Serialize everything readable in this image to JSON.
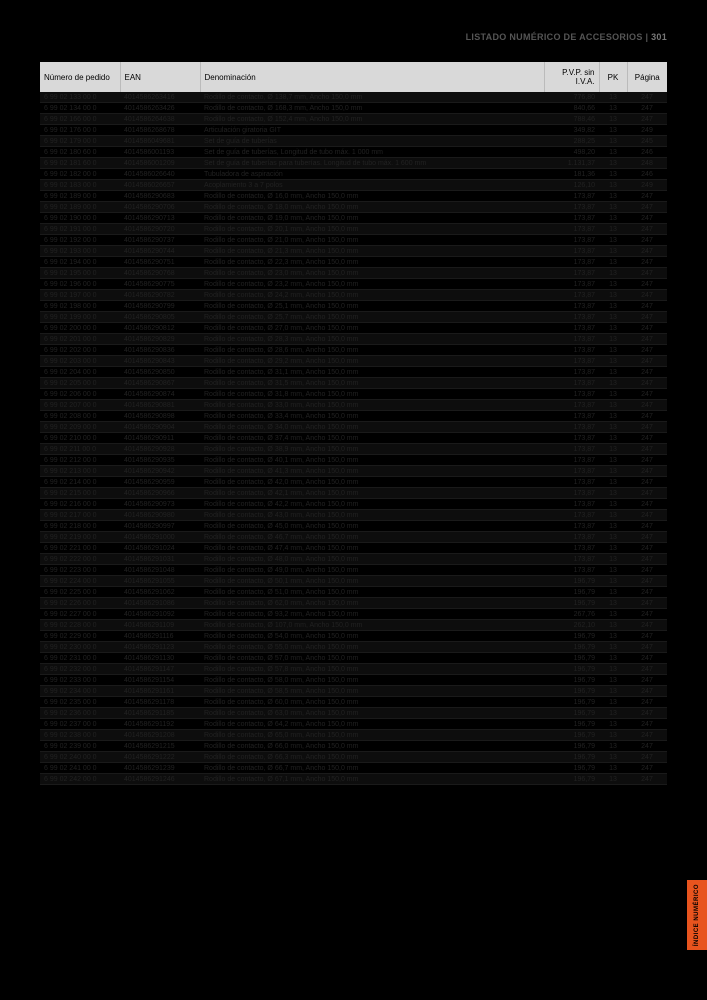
{
  "header": {
    "title": "LISTADO NUMÉRICO DE ACCESORIOS",
    "page": "301"
  },
  "sideTab": "ÍNDICE NUMÉRICO",
  "columns": {
    "num": "Número de pedido",
    "ean": "EAN",
    "den": "Denominación",
    "pvp": "P.V.P. sin I.V.A.",
    "pk": "PK",
    "pg": "Página"
  },
  "rows": [
    [
      "6 99 02 133 00 0",
      "4014586263416",
      "Rodillo de contacto, Ø 138,7 mm, Ancho 150,0 mm",
      "776,80",
      "13",
      "247"
    ],
    [
      "6 99 02 134 00 0",
      "4014586263426",
      "Rodillo de contacto, Ø 168,3 mm, Ancho 150,0 mm",
      "840,66",
      "13",
      "247"
    ],
    [
      "6 99 02 166 00 0",
      "4014586264638",
      "Rodillo de contacto, Ø 152,4 mm, Ancho 150,0 mm",
      "788,46",
      "13",
      "247"
    ],
    [
      "6 99 02 176 00 0",
      "4014586268678",
      "Articulación giratoria GIT",
      "349,82",
      "13",
      "249"
    ],
    [
      "6 99 02 179 00 0",
      "4014586049681",
      "Set de guía de tuberías",
      "288,25",
      "13",
      "245"
    ],
    [
      "6 99 02 180 60 0",
      "4014586001193",
      "Set de guía de tuberías, Longitud de tubo máx. 1 000 mm",
      "498,20",
      "13",
      "246"
    ],
    [
      "6 99 02 181 60 0",
      "4014586001209",
      "Set de guía de tuberías para tuberías. Longitud de tubo máx. 1 600 mm",
      "1.131,37",
      "13",
      "248"
    ],
    [
      "6 99 02 182 00 0",
      "4014586026640",
      "Tubuladora de aspiración",
      "181,36",
      "13",
      "246"
    ],
    [
      "6 99 02 183 00 0",
      "4014586026657",
      "Acoplamiento 3 a 7 polos",
      "126,10",
      "13",
      "249"
    ],
    [
      "6 99 02 189 00 0",
      "4014586290683",
      "Rodillo de contacto, Ø 16,0 mm, Ancho 150,0 mm",
      "173,87",
      "13",
      "247"
    ],
    [
      "6 99 02 189 00 0",
      "4014586290706",
      "Rodillo de contacto, Ø 18,0 mm, Ancho 150,0 mm",
      "173,87",
      "13",
      "247"
    ],
    [
      "6 99 02 190 00 0",
      "4014586290713",
      "Rodillo de contacto, Ø 19,0 mm, Ancho 150,0 mm",
      "173,87",
      "13",
      "247"
    ],
    [
      "6 99 02 191 00 0",
      "4014586290720",
      "Rodillo de contacto, Ø 20,1 mm, Ancho 150,0 mm",
      "173,87",
      "13",
      "247"
    ],
    [
      "6 99 02 192 00 0",
      "4014586290737",
      "Rodillo de contacto, Ø 21,0 mm, Ancho 150,0 mm",
      "173,87",
      "13",
      "247"
    ],
    [
      "6 99 02 193 00 0",
      "4014586290744",
      "Rodillo de contacto, Ø 21,3 mm, Ancho 150,0 mm",
      "173,87",
      "13",
      "247"
    ],
    [
      "6 99 02 194 00 0",
      "4014586290751",
      "Rodillo de contacto, Ø 22,3 mm, Ancho 150,0 mm",
      "173,87",
      "13",
      "247"
    ],
    [
      "6 99 02 195 00 0",
      "4014586290768",
      "Rodillo de contacto, Ø 23,0 mm, Ancho 150,0 mm",
      "173,87",
      "13",
      "247"
    ],
    [
      "6 99 02 196 00 0",
      "4014586290775",
      "Rodillo de contacto, Ø 23,2 mm, Ancho 150,0 mm",
      "173,87",
      "13",
      "247"
    ],
    [
      "6 99 02 197 00 0",
      "4014586290782",
      "Rodillo de contacto, Ø 24,2 mm, Ancho 150,0 mm",
      "173,87",
      "13",
      "247"
    ],
    [
      "6 99 02 198 00 0",
      "4014586290799",
      "Rodillo de contacto, Ø 25,1 mm, Ancho 150,0 mm",
      "173,87",
      "13",
      "247"
    ],
    [
      "6 99 02 199 00 0",
      "4014586290805",
      "Rodillo de contacto, Ø 25,7 mm, Ancho 150,0 mm",
      "173,87",
      "13",
      "247"
    ],
    [
      "6 99 02 200 00 0",
      "4014586290812",
      "Rodillo de contacto, Ø 27,0 mm, Ancho 150,0 mm",
      "173,87",
      "13",
      "247"
    ],
    [
      "6 99 02 201 00 0",
      "4014586290829",
      "Rodillo de contacto, Ø 28,3 mm, Ancho 150,0 mm",
      "173,87",
      "13",
      "247"
    ],
    [
      "6 99 02 202 00 0",
      "4014586290836",
      "Rodillo de contacto, Ø 28,6 mm, Ancho 150,0 mm",
      "173,87",
      "13",
      "247"
    ],
    [
      "6 99 02 203 00 0",
      "4014586290843",
      "Rodillo de contacto, Ø 29,2 mm, Ancho 150,0 mm",
      "173,87",
      "13",
      "247"
    ],
    [
      "6 99 02 204 00 0",
      "4014586290850",
      "Rodillo de contacto, Ø 31,1 mm, Ancho 150,0 mm",
      "173,87",
      "13",
      "247"
    ],
    [
      "6 99 02 205 00 0",
      "4014586290867",
      "Rodillo de contacto, Ø 31,5 mm, Ancho 150,0 mm",
      "173,87",
      "13",
      "247"
    ],
    [
      "6 99 02 206 00 0",
      "4014586290874",
      "Rodillo de contacto, Ø 31,8 mm, Ancho 150,0 mm",
      "173,87",
      "13",
      "247"
    ],
    [
      "6 99 02 207 00 0",
      "4014586290881",
      "Rodillo de contacto, Ø 33,0 mm, Ancho 150,0 mm",
      "173,87",
      "13",
      "247"
    ],
    [
      "6 99 02 208 00 0",
      "4014586290898",
      "Rodillo de contacto, Ø 33,4 mm, Ancho 150,0 mm",
      "173,87",
      "13",
      "247"
    ],
    [
      "6 99 02 209 00 0",
      "4014586290904",
      "Rodillo de contacto, Ø 34,0 mm, Ancho 150,0 mm",
      "173,87",
      "13",
      "247"
    ],
    [
      "6 99 02 210 00 0",
      "4014586290911",
      "Rodillo de contacto, Ø 37,4 mm, Ancho 150,0 mm",
      "173,87",
      "13",
      "247"
    ],
    [
      "6 99 02 211 00 0",
      "4014586290928",
      "Rodillo de contacto, Ø 38,9 mm, Ancho 150,0 mm",
      "173,87",
      "13",
      "247"
    ],
    [
      "6 99 02 212 00 0",
      "4014586290935",
      "Rodillo de contacto, Ø 40,1 mm, Ancho 150,0 mm",
      "173,87",
      "13",
      "247"
    ],
    [
      "6 99 02 213 00 0",
      "4014586290942",
      "Rodillo de contacto, Ø 41,3 mm, Ancho 150,0 mm",
      "173,87",
      "13",
      "247"
    ],
    [
      "6 99 02 214 00 0",
      "4014586290959",
      "Rodillo de contacto, Ø 42,0 mm, Ancho 150,0 mm",
      "173,87",
      "13",
      "247"
    ],
    [
      "6 99 02 215 00 0",
      "4014586290966",
      "Rodillo de contacto, Ø 42,1 mm, Ancho 150,0 mm",
      "173,87",
      "13",
      "247"
    ],
    [
      "6 99 02 216 00 0",
      "4014586290973",
      "Rodillo de contacto, Ø 42,2 mm, Ancho 150,0 mm",
      "173,87",
      "13",
      "247"
    ],
    [
      "6 99 02 217 00 0",
      "4014586290980",
      "Rodillo de contacto, Ø 43,0 mm, Ancho 150,0 mm",
      "173,87",
      "13",
      "247"
    ],
    [
      "6 99 02 218 00 0",
      "4014586290997",
      "Rodillo de contacto, Ø 45,0 mm, Ancho 150,0 mm",
      "173,87",
      "13",
      "247"
    ],
    [
      "6 99 02 219 00 0",
      "4014586291000",
      "Rodillo de contacto, Ø 46,7 mm, Ancho 150,0 mm",
      "173,87",
      "13",
      "247"
    ],
    [
      "6 99 02 221 00 0",
      "4014586291024",
      "Rodillo de contacto, Ø 47,4 mm, Ancho 150,0 mm",
      "173,87",
      "13",
      "247"
    ],
    [
      "6 99 02 222 00 0",
      "4014586291031",
      "Rodillo de contacto, Ø 48,0 mm, Ancho 150,0 mm",
      "173,87",
      "13",
      "247"
    ],
    [
      "6 99 02 223 00 0",
      "4014586291048",
      "Rodillo de contacto, Ø 49,0 mm, Ancho 150,0 mm",
      "173,87",
      "13",
      "247"
    ],
    [
      "6 99 02 224 00 0",
      "4014586291055",
      "Rodillo de contacto, Ø 50,1 mm, Ancho 150,0 mm",
      "196,79",
      "13",
      "247"
    ],
    [
      "6 99 02 225 00 0",
      "4014586291062",
      "Rodillo de contacto, Ø 51,0 mm, Ancho 150,0 mm",
      "196,79",
      "13",
      "247"
    ],
    [
      "6 99 02 226 00 0",
      "4014586291086",
      "Rodillo de contacto, Ø 62,0 mm, Ancho 150,0 mm",
      "196,79",
      "13",
      "247"
    ],
    [
      "6 99 02 227 00 0",
      "4014586291092",
      "Rodillo de contacto, Ø 93,2 mm, Ancho 150,0 mm",
      "267,76",
      "13",
      "247"
    ],
    [
      "6 99 02 228 00 0",
      "4014586291109",
      "Rodillo de contacto, Ø 107,0 mm, Ancho 150,0 mm",
      "262,10",
      "13",
      "247"
    ],
    [
      "6 99 02 229 00 0",
      "4014586291116",
      "Rodillo de contacto, Ø 54,0 mm, Ancho 150,0 mm",
      "196,79",
      "13",
      "247"
    ],
    [
      "6 99 02 230 00 0",
      "4014586291123",
      "Rodillo de contacto, Ø 55,0 mm, Ancho 150,0 mm",
      "196,79",
      "13",
      "247"
    ],
    [
      "6 99 02 231 00 0",
      "4014586291130",
      "Rodillo de contacto, Ø 57,0 mm, Ancho 150,0 mm",
      "196,79",
      "13",
      "247"
    ],
    [
      "6 99 02 232 00 0",
      "4014586291147",
      "Rodillo de contacto, Ø 57,8 mm, Ancho 150,0 mm",
      "196,79",
      "13",
      "247"
    ],
    [
      "6 99 02 233 00 0",
      "4014586291154",
      "Rodillo de contacto, Ø 58,0 mm, Ancho 150,0 mm",
      "196,79",
      "13",
      "247"
    ],
    [
      "6 99 02 234 00 0",
      "4014586291161",
      "Rodillo de contacto, Ø 58,5 mm, Ancho 150,0 mm",
      "196,79",
      "13",
      "247"
    ],
    [
      "6 99 02 235 00 0",
      "4014586291178",
      "Rodillo de contacto, Ø 60,0 mm, Ancho 150,0 mm",
      "196,79",
      "13",
      "247"
    ],
    [
      "6 99 02 236 00 0",
      "4014586291185",
      "Rodillo de contacto, Ø 63,0 mm, Ancho 150,0 mm",
      "196,79",
      "13",
      "247"
    ],
    [
      "6 99 02 237 00 0",
      "4014586291192",
      "Rodillo de contacto, Ø 64,2 mm, Ancho 150,0 mm",
      "196,79",
      "13",
      "247"
    ],
    [
      "6 99 02 238 00 0",
      "4014586291208",
      "Rodillo de contacto, Ø 65,0 mm, Ancho 150,0 mm",
      "196,79",
      "13",
      "247"
    ],
    [
      "6 99 02 239 00 0",
      "4014586291215",
      "Rodillo de contacto, Ø 66,0 mm, Ancho 150,0 mm",
      "196,79",
      "13",
      "247"
    ],
    [
      "6 99 02 240 00 0",
      "4014586291222",
      "Rodillo de contacto, Ø 66,3 mm, Ancho 150,0 mm",
      "196,79",
      "13",
      "247"
    ],
    [
      "6 99 02 241 00 0",
      "4014586291239",
      "Rodillo de contacto, Ø 66,7 mm, Ancho 150,0 mm",
      "196,79",
      "13",
      "247"
    ],
    [
      "6 99 02 242 00 0",
      "4014586291246",
      "Rodillo de contacto, Ø 67,1 mm, Ancho 150,0 mm",
      "196,79",
      "13",
      "247"
    ]
  ]
}
